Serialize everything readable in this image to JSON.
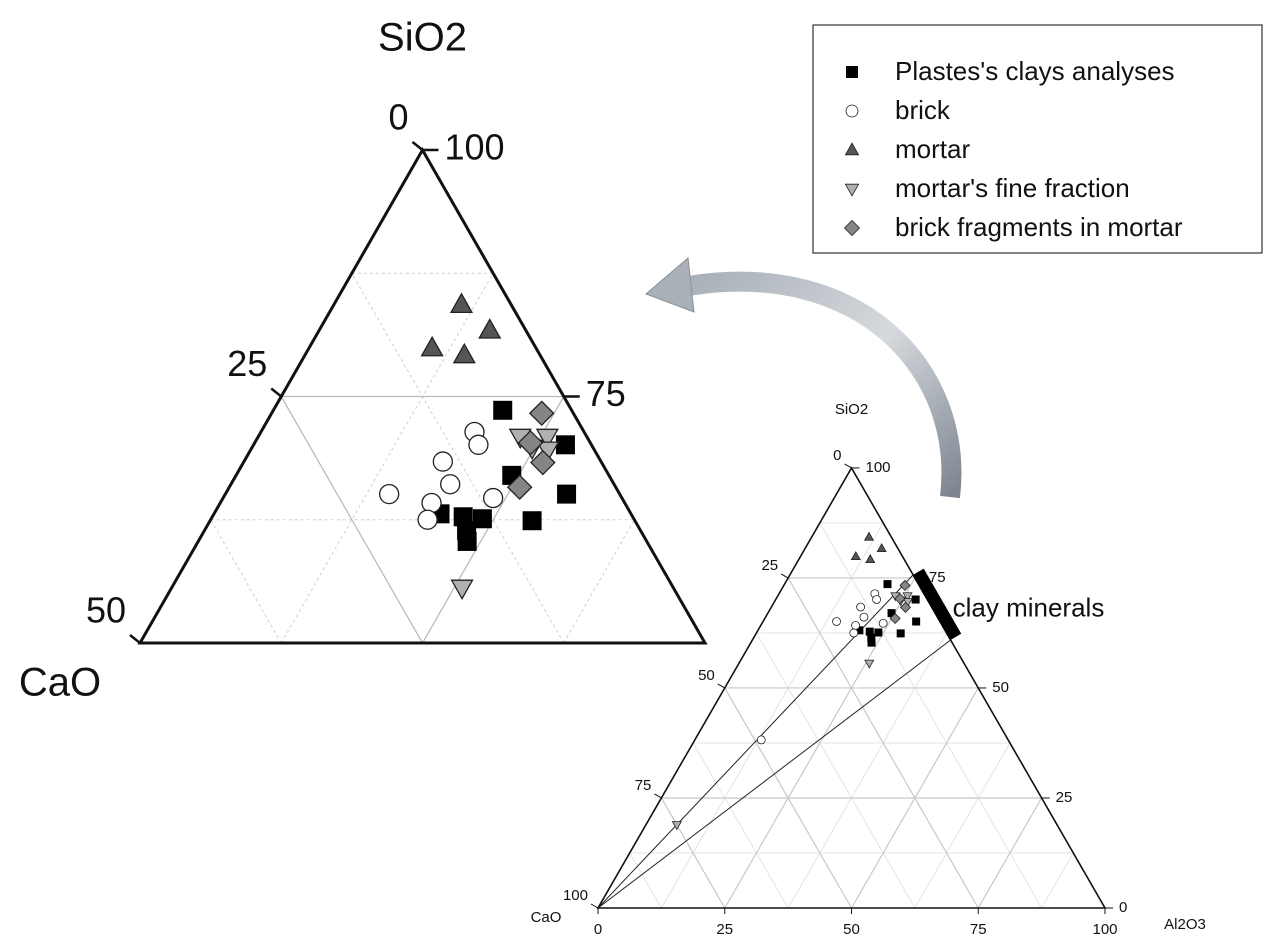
{
  "chart_data": {
    "type": "ternary",
    "axis_labels": {
      "top": "SiO2",
      "left": "CaO",
      "right": "Al2O3"
    },
    "sio2_ticks": [
      0,
      25,
      50,
      75,
      100
    ],
    "cao_ticks": [
      0,
      25,
      50,
      75,
      100
    ],
    "al2o3_ticks": [
      0,
      25,
      50,
      75,
      100
    ],
    "grid": true,
    "legend": "upper right",
    "series": [
      {
        "name": "Plastes's clays analyses",
        "marker": "square",
        "color": "#000000",
        "sio2": [
          73.6,
          70.1,
          67.0,
          65.1,
          62.4,
          63.1,
          62.8,
          62.6,
          61.4,
          60.3
        ],
        "al2o3": [
          20.3,
          27.6,
          24.4,
          30.2,
          28.5,
          20.0,
          22.2,
          24.0,
          23.2,
          23.8
        ]
      },
      {
        "name": "brick",
        "marker": "circle",
        "color": "#ffffff",
        "sio2": [
          71.4,
          70.1,
          68.4,
          66.1,
          65.1,
          64.2,
          64.7,
          62.5,
          38.2
        ],
        "al2o3": [
          18.9,
          19.9,
          17.6,
          19.4,
          14.5,
          18.7,
          23.9,
          19.2,
          13.1
        ]
      },
      {
        "name": "mortar",
        "marker": "triangle",
        "color": "#555555",
        "sio2": [
          84.3,
          81.7,
          79.9,
          79.2
        ],
        "al2o3": [
          11.3,
          15.1,
          10.9,
          14.1
        ]
      },
      {
        "name": "mortar's fine fraction",
        "marker": "triangle-down",
        "color": "#b0b0b0",
        "sio2": [
          70.9,
          70.9,
          69.8,
          69.6,
          55.6,
          18.9
        ],
        "al2o3": [
          23.2,
          25.6,
          24.8,
          26.3,
          25.7,
          6.1
        ]
      },
      {
        "name": "brick fragments in mortar",
        "marker": "diamond",
        "color": "#858585",
        "sio2": [
          73.3,
          70.3,
          68.3,
          65.8
        ],
        "al2o3": [
          23.9,
          24.4,
          26.5,
          25.7
        ]
      }
    ],
    "annotation": {
      "text": "clay minerals",
      "sio2": [
        75.7,
        60.9
      ]
    },
    "zoom": {
      "sio2lim": [
        50,
        100
      ],
      "sio2_ticks": [
        75,
        100
      ],
      "cao_ticks": [
        0,
        25,
        50
      ]
    }
  }
}
